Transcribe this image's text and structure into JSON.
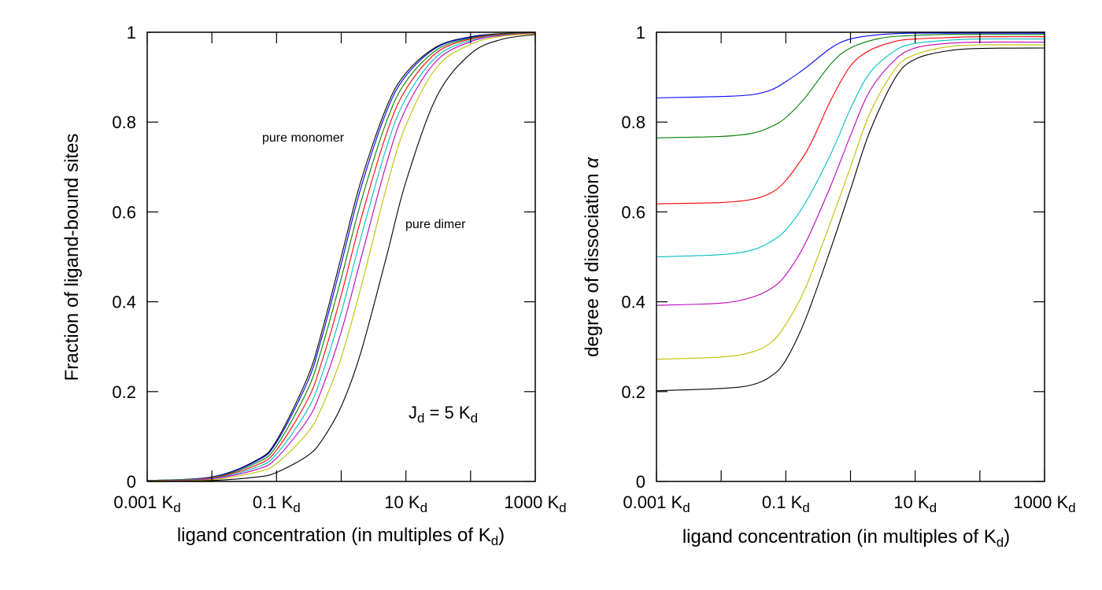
{
  "chart_data": [
    {
      "type": "line",
      "xscale": "log",
      "xlim": [
        0.001,
        1000
      ],
      "ylim": [
        0,
        1
      ],
      "xticks": [
        {
          "value": 0.001,
          "base": "0.001 K",
          "sub": "d"
        },
        {
          "value": 0.1,
          "base": "0.1 K",
          "sub": "d"
        },
        {
          "value": 10,
          "base": "10 K",
          "sub": "d"
        },
        {
          "value": 1000,
          "base": "1000 K",
          "sub": "d"
        }
      ],
      "yticks": [
        "0",
        "0.2",
        "0.4",
        "0.6",
        "0.8",
        "1"
      ],
      "xlabel": {
        "base": "ligand concentration (in multiples of K",
        "sub": "d",
        "tail": ")"
      },
      "ylabel": "Fraction of ligand-bound sites",
      "grid": false,
      "annotations": {
        "monomer": "pure monomer",
        "dimer": "pure dimer",
        "jd": {
          "a": "J",
          "a_sub": "d",
          "b": " = 5 K",
          "b_sub": "d"
        }
      },
      "series": [
        {
          "color": "#000000",
          "x": [
            0.001,
            0.01,
            0.05,
            0.1,
            0.3,
            0.5,
            1,
            2,
            5,
            10,
            30,
            100,
            300,
            1000
          ],
          "y": [
            0.002,
            0.01,
            0.048,
            0.091,
            0.231,
            0.333,
            0.5,
            0.667,
            0.833,
            0.909,
            0.968,
            0.99,
            0.997,
            0.999
          ]
        },
        {
          "color": "#0000ff",
          "x": [
            0.001,
            0.01,
            0.05,
            0.1,
            0.3,
            0.5,
            1,
            2,
            5,
            10,
            30,
            100,
            300,
            1000
          ],
          "y": [
            0.002,
            0.01,
            0.046,
            0.087,
            0.221,
            0.32,
            0.484,
            0.652,
            0.823,
            0.903,
            0.966,
            0.989,
            0.996,
            0.999
          ]
        },
        {
          "color": "#008000",
          "x": [
            0.001,
            0.01,
            0.05,
            0.1,
            0.3,
            0.5,
            1,
            2,
            5,
            10,
            30,
            100,
            300,
            1000
          ],
          "y": [
            0.002,
            0.009,
            0.042,
            0.079,
            0.203,
            0.296,
            0.452,
            0.62,
            0.801,
            0.89,
            0.961,
            0.987,
            0.996,
            0.999
          ]
        },
        {
          "color": "#ff0000",
          "x": [
            0.001,
            0.01,
            0.05,
            0.1,
            0.3,
            0.5,
            1,
            2,
            5,
            10,
            30,
            100,
            300,
            1000
          ],
          "y": [
            0.001,
            0.008,
            0.037,
            0.07,
            0.181,
            0.266,
            0.415,
            0.582,
            0.774,
            0.873,
            0.955,
            0.985,
            0.995,
            0.998
          ]
        },
        {
          "color": "#00bfbf",
          "x": [
            0.001,
            0.01,
            0.05,
            0.1,
            0.3,
            0.5,
            1,
            2,
            5,
            10,
            30,
            100,
            300,
            1000
          ],
          "y": [
            0.001,
            0.007,
            0.032,
            0.061,
            0.159,
            0.236,
            0.376,
            0.541,
            0.743,
            0.853,
            0.946,
            0.982,
            0.994,
            0.998
          ]
        },
        {
          "color": "#bf00bf",
          "x": [
            0.001,
            0.01,
            0.05,
            0.1,
            0.3,
            0.5,
            1,
            2,
            5,
            10,
            30,
            100,
            300,
            1000
          ],
          "y": [
            0.001,
            0.006,
            0.027,
            0.052,
            0.137,
            0.205,
            0.333,
            0.494,
            0.707,
            0.83,
            0.937,
            0.979,
            0.993,
            0.998
          ]
        },
        {
          "color": "#bfbf00",
          "x": [
            0.001,
            0.01,
            0.05,
            0.1,
            0.3,
            0.5,
            1,
            2,
            5,
            10,
            30,
            100,
            300,
            1000
          ],
          "y": [
            0.001,
            0.004,
            0.021,
            0.04,
            0.108,
            0.165,
            0.276,
            0.43,
            0.654,
            0.793,
            0.922,
            0.973,
            0.991,
            0.997
          ]
        },
        {
          "color": "#000000",
          "x": [
            0.001,
            0.01,
            0.05,
            0.1,
            0.3,
            0.5,
            1,
            2,
            5,
            10,
            30,
            100,
            300,
            1000
          ],
          "y": [
            0.0004,
            0.002,
            0.01,
            0.02,
            0.057,
            0.091,
            0.167,
            0.286,
            0.5,
            0.667,
            0.857,
            0.952,
            0.984,
            0.995
          ]
        }
      ]
    },
    {
      "type": "line",
      "xscale": "log",
      "xlim": [
        0.001,
        1000
      ],
      "ylim": [
        0,
        1
      ],
      "xticks": [
        {
          "value": 0.001,
          "base": "0.001 K",
          "sub": "d"
        },
        {
          "value": 0.1,
          "base": "0.1 K",
          "sub": "d"
        },
        {
          "value": 10,
          "base": "10 K",
          "sub": "d"
        },
        {
          "value": 1000,
          "base": "1000 K",
          "sub": "d"
        }
      ],
      "yticks": [
        "0",
        "0.2",
        "0.4",
        "0.6",
        "0.8",
        "1"
      ],
      "xlabel": {
        "base": "ligand concentration (in multiples of K",
        "sub": "d",
        "tail": ")"
      },
      "ylabel": {
        "base": "degree of dissociation ",
        "symbol": "α"
      },
      "grid": false,
      "series": [
        {
          "color": "#0000ff",
          "x": [
            0.001,
            0.01,
            0.03,
            0.06,
            0.1,
            0.2,
            0.5,
            1,
            3,
            10,
            30,
            100,
            1000
          ],
          "y": [
            0.854,
            0.857,
            0.861,
            0.872,
            0.89,
            0.92,
            0.965,
            0.985,
            0.995,
            0.998,
            0.998,
            0.998,
            0.998
          ]
        },
        {
          "color": "#008000",
          "x": [
            0.001,
            0.01,
            0.03,
            0.06,
            0.1,
            0.2,
            0.5,
            1,
            3,
            10,
            30,
            100,
            1000
          ],
          "y": [
            0.765,
            0.768,
            0.775,
            0.79,
            0.81,
            0.855,
            0.93,
            0.965,
            0.987,
            0.993,
            0.995,
            0.995,
            0.995
          ]
        },
        {
          "color": "#ff0000",
          "x": [
            0.001,
            0.01,
            0.03,
            0.06,
            0.1,
            0.2,
            0.3,
            0.5,
            1,
            2,
            5,
            10,
            30,
            100,
            1000
          ],
          "y": [
            0.618,
            0.621,
            0.628,
            0.643,
            0.67,
            0.73,
            0.78,
            0.85,
            0.925,
            0.96,
            0.98,
            0.985,
            0.988,
            0.99,
            0.99
          ]
        },
        {
          "color": "#00bfbf",
          "x": [
            0.001,
            0.01,
            0.03,
            0.06,
            0.1,
            0.2,
            0.5,
            1,
            2,
            5,
            10,
            30,
            100,
            1000
          ],
          "y": [
            0.5,
            0.505,
            0.515,
            0.535,
            0.56,
            0.62,
            0.73,
            0.83,
            0.91,
            0.96,
            0.975,
            0.982,
            0.985,
            0.985
          ]
        },
        {
          "color": "#bf00bf",
          "x": [
            0.001,
            0.01,
            0.03,
            0.06,
            0.1,
            0.2,
            0.5,
            1,
            2,
            5,
            10,
            30,
            100,
            1000
          ],
          "y": [
            0.392,
            0.397,
            0.41,
            0.43,
            0.46,
            0.53,
            0.66,
            0.77,
            0.87,
            0.94,
            0.965,
            0.975,
            0.978,
            0.978
          ]
        },
        {
          "color": "#bfbf00",
          "x": [
            0.001,
            0.01,
            0.03,
            0.06,
            0.1,
            0.2,
            0.5,
            1,
            2,
            5,
            10,
            30,
            100,
            1000
          ],
          "y": [
            0.272,
            0.277,
            0.288,
            0.31,
            0.35,
            0.43,
            0.58,
            0.7,
            0.82,
            0.92,
            0.95,
            0.967,
            0.972,
            0.972
          ]
        },
        {
          "color": "#000000",
          "x": [
            0.001,
            0.01,
            0.03,
            0.06,
            0.1,
            0.2,
            0.5,
            1,
            2,
            5,
            10,
            30,
            100,
            1000
          ],
          "y": [
            0.202,
            0.207,
            0.215,
            0.235,
            0.27,
            0.36,
            0.52,
            0.65,
            0.78,
            0.9,
            0.94,
            0.958,
            0.964,
            0.965
          ]
        }
      ]
    }
  ]
}
